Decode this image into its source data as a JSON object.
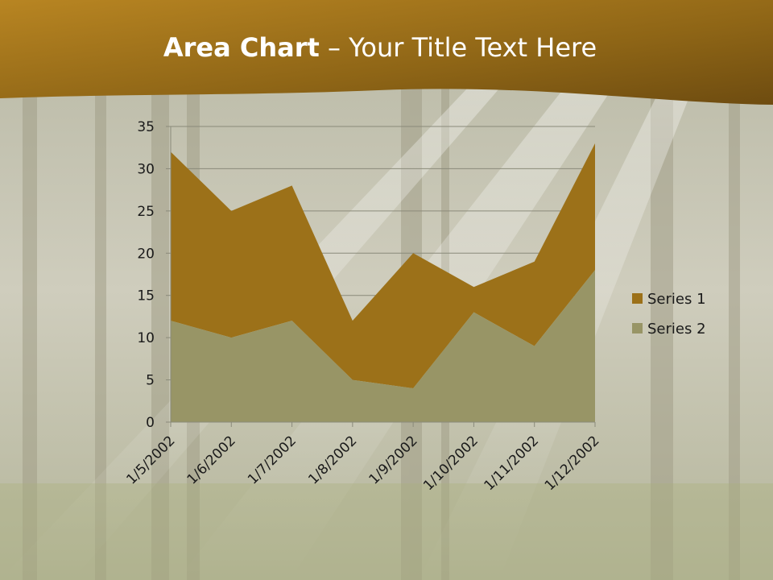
{
  "slide": {
    "title_bold": "Area Chart",
    "title_separator": " – ",
    "title_rest": "Your Title Text Here"
  },
  "colors": {
    "banner_dark": "#6e4c10",
    "banner_light": "#b88522",
    "series_1": "#9c7119",
    "series_2": "#989566",
    "gridline": "#8a8a7a",
    "axis": "#8a8a7a"
  },
  "chart_data": {
    "type": "area",
    "stacked": true,
    "title": "",
    "xlabel": "",
    "ylabel": "",
    "categories": [
      "1/5/2002",
      "1/6/2002",
      "1/7/2002",
      "1/8/2002",
      "1/9/2002",
      "1/10/2002",
      "1/11/2002",
      "1/12/2002"
    ],
    "series": [
      {
        "name": "Series 1",
        "values": [
          20,
          15,
          16,
          7,
          16,
          3,
          10,
          15
        ]
      },
      {
        "name": "Series 2",
        "values": [
          12,
          10,
          12,
          5,
          4,
          13,
          9,
          18
        ]
      }
    ],
    "ylim": [
      0,
      35
    ],
    "yticks": [
      0,
      5,
      10,
      15,
      20,
      25,
      30,
      35
    ],
    "grid": true,
    "legend_position": "right"
  }
}
